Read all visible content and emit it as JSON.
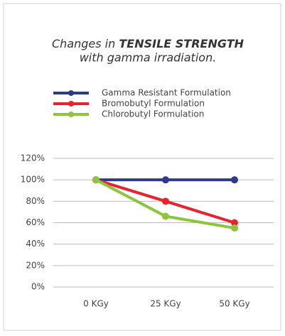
{
  "chart_data": {
    "type": "line",
    "title": [
      "Changes in",
      "TENSILE STRENGTH",
      "with gamma irradiation."
    ],
    "categories": [
      "0 KGy",
      "25 KGy",
      "50 KGy"
    ],
    "series": [
      {
        "name": "Gamma Resistant Formulation",
        "color": "#2e3a8c",
        "values": [
          100,
          100,
          100
        ]
      },
      {
        "name": "Bromobutyl Formulation",
        "color": "#e8232f",
        "values": [
          100,
          80,
          60
        ]
      },
      {
        "name": "Chlorobutyl Formulation",
        "color": "#8cc63f",
        "values": [
          100,
          66,
          55
        ]
      }
    ],
    "ylim": [
      0,
      120
    ],
    "yticks": [
      {
        "value": 0,
        "label": "0%"
      },
      {
        "value": 20,
        "label": "20%"
      },
      {
        "value": 40,
        "label": "40%"
      },
      {
        "value": 60,
        "label": "60%"
      },
      {
        "value": 80,
        "label": "80%"
      },
      {
        "value": 100,
        "label": "100%"
      },
      {
        "value": 120,
        "label": "120%"
      }
    ],
    "grid": true
  }
}
